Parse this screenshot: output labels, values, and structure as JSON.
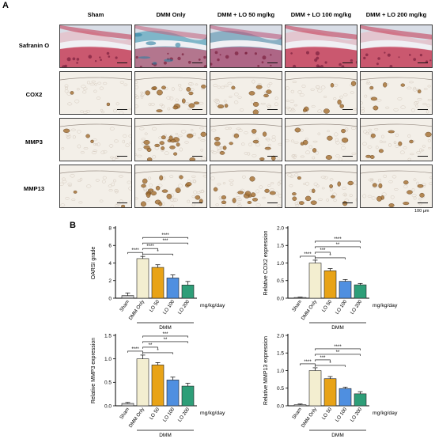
{
  "panel_a_label": "A",
  "panel_b_label": "B",
  "columns": [
    "Sham",
    "DMM Only",
    "DMM + LO 50 mg/kg",
    "DMM + LO 100 mg/kg",
    "DMM + LO 200 mg/kg"
  ],
  "rows": [
    "Safranin O",
    "COX2",
    "MMP3",
    "MMP13"
  ],
  "scale_label": "100 μm",
  "colors": {
    "sham": "#c8c8c8",
    "dmm": "#f3eed0",
    "lo50": "#e8a317",
    "lo100": "#4f8fe0",
    "lo200": "#2e9e78",
    "safranin_bg": "#e3c6cf",
    "dab_bg": "#f3efe8"
  },
  "sig_labels": {
    "p4": "****",
    "p3": "***",
    "p2": "**",
    "p1": "*"
  },
  "chart_data": [
    {
      "type": "bar",
      "ylabel": "OARSI grade",
      "categories": [
        "Sham",
        "DMM Only",
        "LO 50",
        "LO 100",
        "LO 200"
      ],
      "values": [
        0.3,
        4.5,
        3.5,
        2.3,
        1.5
      ],
      "errors": [
        0.3,
        0.25,
        0.3,
        0.35,
        0.4
      ],
      "ylim": [
        0,
        8
      ],
      "yticks": [
        "0",
        "2",
        "4",
        "6",
        "8"
      ],
      "unit_label": "mg/kg/day",
      "group_label": "DMM",
      "significance": [
        {
          "from": 0,
          "to": 1,
          "label": "****"
        },
        {
          "from": 1,
          "to": 3,
          "label": "*"
        },
        {
          "from": 1,
          "to": 2,
          "label": "****"
        },
        {
          "from": 1,
          "to": 4,
          "label": "***"
        },
        {
          "from": 1,
          "to": 4,
          "label": "****"
        }
      ]
    },
    {
      "type": "bar",
      "ylabel": "Relative COX2 expression",
      "categories": [
        "Sham",
        "DMM Only",
        "LO 50",
        "LO 100",
        "LO 200"
      ],
      "values": [
        0.02,
        1.0,
        0.78,
        0.48,
        0.38
      ],
      "errors": [
        0.01,
        0.08,
        0.06,
        0.05,
        0.04
      ],
      "ylim": [
        0,
        2.0
      ],
      "yticks": [
        "0.0",
        "0.5",
        "1.0",
        "1.5",
        "2.0"
      ],
      "unit_label": "mg/kg/day",
      "group_label": "DMM",
      "significance": [
        {
          "from": 0,
          "to": 1,
          "label": "****"
        },
        {
          "from": 1,
          "to": 3,
          "label": "*"
        },
        {
          "from": 1,
          "to": 2,
          "label": "***"
        },
        {
          "from": 1,
          "to": 4,
          "label": "**"
        },
        {
          "from": 1,
          "to": 4,
          "label": "****"
        }
      ]
    },
    {
      "type": "bar",
      "ylabel": "Relative MMP3 expression",
      "categories": [
        "Sham",
        "DMM Only",
        "LO 50",
        "LO 100",
        "LO 200"
      ],
      "values": [
        0.05,
        1.0,
        0.87,
        0.55,
        0.42
      ],
      "errors": [
        0.02,
        0.08,
        0.05,
        0.06,
        0.06
      ],
      "ylim": [
        0,
        1.5
      ],
      "yticks": [
        "0.0",
        "0.5",
        "1.0",
        "1.5"
      ],
      "unit_label": "mg/kg/day",
      "group_label": "DMM",
      "significance": [
        {
          "from": 0,
          "to": 1,
          "label": "****"
        },
        {
          "from": 1,
          "to": 3,
          "label": "*"
        },
        {
          "from": 1,
          "to": 2,
          "label": "**"
        },
        {
          "from": 1,
          "to": 4,
          "label": "**"
        },
        {
          "from": 1,
          "to": 4,
          "label": "***"
        }
      ]
    },
    {
      "type": "bar",
      "ylabel": "Relative MMP13 expression",
      "categories": [
        "Sham",
        "DMM Only",
        "LO 50",
        "LO 100",
        "LO 200"
      ],
      "values": [
        0.03,
        1.0,
        0.77,
        0.49,
        0.34
      ],
      "errors": [
        0.02,
        0.08,
        0.06,
        0.04,
        0.06
      ],
      "ylim": [
        0,
        2.0
      ],
      "yticks": [
        "0.0",
        "0.5",
        "1.0",
        "1.5",
        "2.0"
      ],
      "unit_label": "mg/kg/day",
      "group_label": "DMM",
      "significance": [
        {
          "from": 0,
          "to": 1,
          "label": "****"
        },
        {
          "from": 1,
          "to": 3,
          "label": "*"
        },
        {
          "from": 1,
          "to": 2,
          "label": "***"
        },
        {
          "from": 1,
          "to": 4,
          "label": "**"
        },
        {
          "from": 1,
          "to": 4,
          "label": "****"
        }
      ]
    }
  ]
}
